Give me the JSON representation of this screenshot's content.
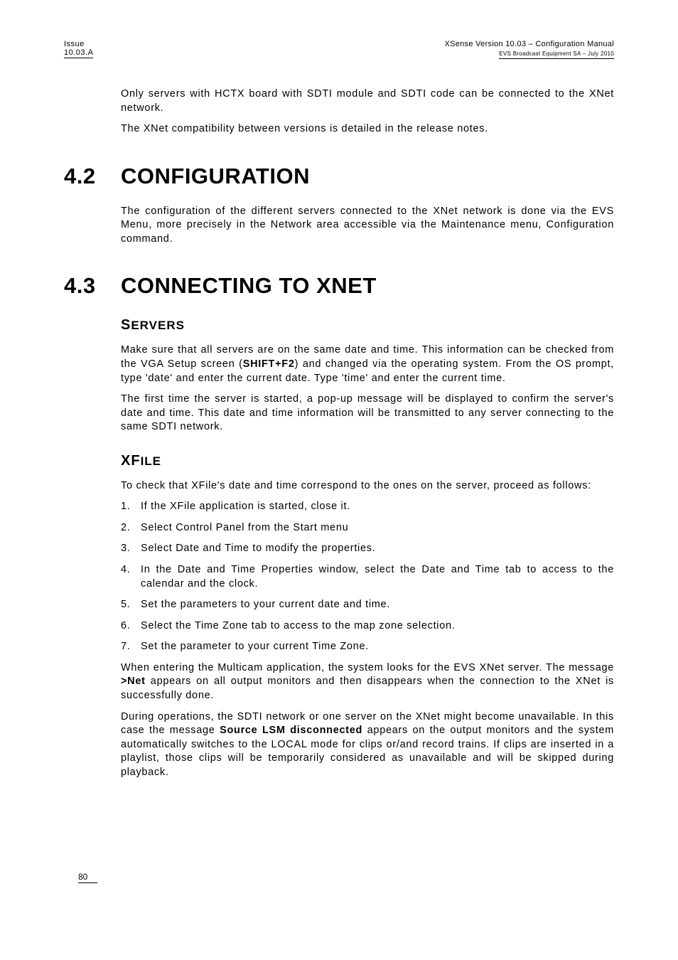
{
  "header": {
    "issue_label": "Issue",
    "issue_version": "10.03.A",
    "product_line": "XSense    Version 10.03 – Configuration Manual",
    "company_line": "EVS Broadcast Equipment SA – July 2010"
  },
  "intro": {
    "p1": "Only servers with HCTX board with SDTI module and SDTI code can be connected to the XNet network.",
    "p2": "The XNet compatibility between versions is detailed in the release notes."
  },
  "sec42": {
    "num": "4.2",
    "title": "CONFIGURATION",
    "p1": "The configuration of the different servers connected to the XNet network is done via the EVS Menu, more precisely in the Network area accessible via the Maintenance menu, Configuration command."
  },
  "sec43": {
    "num": "4.3",
    "title": "CONNECTING TO XNET",
    "servers": {
      "heading_first": "S",
      "heading_rest": "ERVERS",
      "p1_a": "Make sure that all servers are on the same date and time. This information can be checked from the VGA Setup screen (",
      "p1_strong": "SHIFT+F2",
      "p1_b": ") and changed via the operating system. From the OS prompt, type 'date' and enter the current date. Type 'time' and enter the current time.",
      "p2": "The first time the server is started, a pop-up message will be displayed to confirm the server's date and time. This date and time information will be transmitted to any server connecting to the same SDTI network."
    },
    "xfile": {
      "heading_first": "XF",
      "heading_rest": "ILE",
      "p1": "To check that XFile's date and time correspond to the ones on the server, proceed as follows:",
      "steps": [
        "If the XFile application is started, close it.",
        "Select Control Panel from the Start menu",
        "Select Date and Time to modify the properties.",
        "In the Date and Time Properties window, select the Date and Time tab to access to the calendar and the clock.",
        "Set the parameters to your current date and time.",
        "Select the Time Zone tab to access to the map zone selection.",
        "Set the parameter to your current Time Zone."
      ],
      "p2_a": "When entering the Multicam application, the system looks for the EVS XNet server. The message ",
      "p2_strong": ">Net",
      "p2_b": " appears on all output monitors and then disappears when the connection to the XNet is successfully done.",
      "p3_a": "During operations, the SDTI network or one server on the XNet might become unavailable. In this case the message ",
      "p3_strong": "Source LSM disconnected",
      "p3_b": " appears on the output monitors and the system automatically switches to the LOCAL mode for clips or/and record trains. If clips are inserted in a playlist, those clips will be temporarily considered as unavailable and will be skipped during playback."
    }
  },
  "page_number": "80"
}
